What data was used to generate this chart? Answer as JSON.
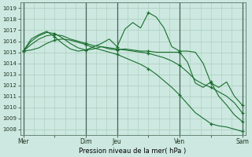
{
  "background_color": "#cce8e0",
  "grid_color_major": "#aaccbb",
  "grid_color_minor": "#c8e0d8",
  "line_color": "#1a6e2e",
  "ylabel_text": "Pression niveau de la mer( hPa )",
  "ylim": [
    1007.5,
    1019.5
  ],
  "yticks": [
    1008,
    1009,
    1010,
    1011,
    1012,
    1013,
    1014,
    1015,
    1016,
    1017,
    1018,
    1019
  ],
  "xtick_labels": [
    "Mer",
    "",
    "Dim",
    "Jeu",
    "",
    "Ven",
    "",
    "Sam"
  ],
  "xtick_positions": [
    0,
    3,
    6,
    9,
    12,
    15,
    18,
    21
  ],
  "vlines": [
    0,
    6,
    9,
    15,
    21
  ],
  "series": [
    [
      1015.1,
      1015.2,
      1015.4,
      1015.8,
      1016.1,
      1016.2,
      1016.1,
      1015.9,
      1015.7,
      1015.4,
      1015.2,
      1015.0,
      1014.8,
      1014.5,
      1014.2,
      1013.9,
      1013.5,
      1013.0,
      1012.4,
      1011.8,
      1011.1,
      1010.3,
      1009.5,
      1009.0,
      1008.5,
      1008.3,
      1008.2,
      1008.0,
      1007.8
    ],
    [
      1015.1,
      1015.7,
      1016.2,
      1016.5,
      1016.6,
      1016.5,
      1016.2,
      1016.0,
      1015.8,
      1015.6,
      1015.5,
      1015.4,
      1015.3,
      1015.2,
      1015.1,
      1015.0,
      1014.9,
      1014.7,
      1014.5,
      1014.2,
      1013.8,
      1013.2,
      1012.5,
      1012.1,
      1011.8,
      1011.4,
      1011.0,
      1010.4,
      1009.5
    ],
    [
      1015.1,
      1016.0,
      1016.5,
      1016.8,
      1016.7,
      1016.3,
      1015.8,
      1015.4,
      1015.2,
      1015.5,
      1015.8,
      1016.2,
      1015.5,
      1017.1,
      1017.7,
      1017.2,
      1018.6,
      1018.2,
      1017.2,
      1015.5,
      1015.1,
      1015.1,
      1015.0,
      1014.0,
      1012.2,
      1011.8,
      1012.3,
      1011.0,
      1010.2
    ],
    [
      1015.1,
      1016.2,
      1016.6,
      1016.9,
      1016.4,
      1015.8,
      1015.3,
      1015.1,
      1015.2,
      1015.3,
      1015.5,
      1015.3,
      1015.2,
      1015.3,
      1015.2,
      1015.1,
      1015.1,
      1015.0,
      1015.0,
      1015.0,
      1015.0,
      1014.1,
      1012.2,
      1011.8,
      1012.3,
      1011.0,
      1010.2,
      1009.3,
      1008.7
    ]
  ],
  "series_lw": [
    0.8,
    0.8,
    0.8,
    0.8
  ],
  "marker_indices": [
    0,
    3,
    6,
    9,
    12,
    15,
    18,
    21
  ]
}
